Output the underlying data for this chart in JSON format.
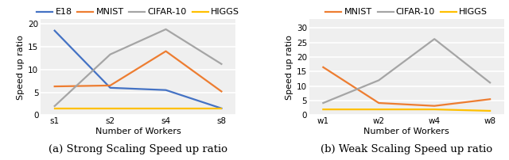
{
  "left": {
    "x_labels": [
      "s1",
      "s2",
      "s4",
      "s8"
    ],
    "series": [
      {
        "name": "E18",
        "values": [
          18.5,
          6.0,
          5.5,
          1.5
        ],
        "color": "#4472C4"
      },
      {
        "name": "MNIST",
        "values": [
          6.3,
          6.5,
          14.0,
          5.2
        ],
        "color": "#ED7D31"
      },
      {
        "name": "CIFAR-10",
        "values": [
          2.0,
          13.3,
          18.8,
          11.2
        ],
        "color": "#A5A5A5"
      },
      {
        "name": "HIGGS",
        "values": [
          1.4,
          1.4,
          1.4,
          1.4
        ],
        "color": "#FFC000"
      }
    ],
    "ylim": [
      0,
      21
    ],
    "yticks": [
      0,
      5,
      10,
      15,
      20
    ],
    "ylabel": "Speed up ratio",
    "xlabel": "Number of Workers",
    "caption": "(a) Strong Scaling Speed up ratio"
  },
  "right": {
    "x_labels": [
      "w1",
      "w2",
      "w4",
      "w8"
    ],
    "series": [
      {
        "name": "MNIST",
        "values": [
          16.5,
          4.2,
          3.2,
          5.5
        ],
        "color": "#ED7D31"
      },
      {
        "name": "CIFAR-10",
        "values": [
          4.2,
          12.0,
          26.2,
          11.2
        ],
        "color": "#A5A5A5"
      },
      {
        "name": "HIGGS",
        "values": [
          2.0,
          2.0,
          2.0,
          1.5
        ],
        "color": "#FFC000"
      }
    ],
    "ylim": [
      0,
      33
    ],
    "yticks": [
      0,
      5,
      10,
      15,
      20,
      25,
      30
    ],
    "ylabel": "Speed up ratio",
    "xlabel": "Number of Workers",
    "caption": "(b) Weak Scaling Speed up ratio"
  },
  "plot_bg_color": "#EFEFEF",
  "fig_bg_color": "#FFFFFF",
  "grid_color": "#FFFFFF",
  "line_width": 1.6,
  "caption_fontsize": 9.5,
  "tick_fontsize": 7.5,
  "label_fontsize": 8,
  "legend_fontsize": 8
}
